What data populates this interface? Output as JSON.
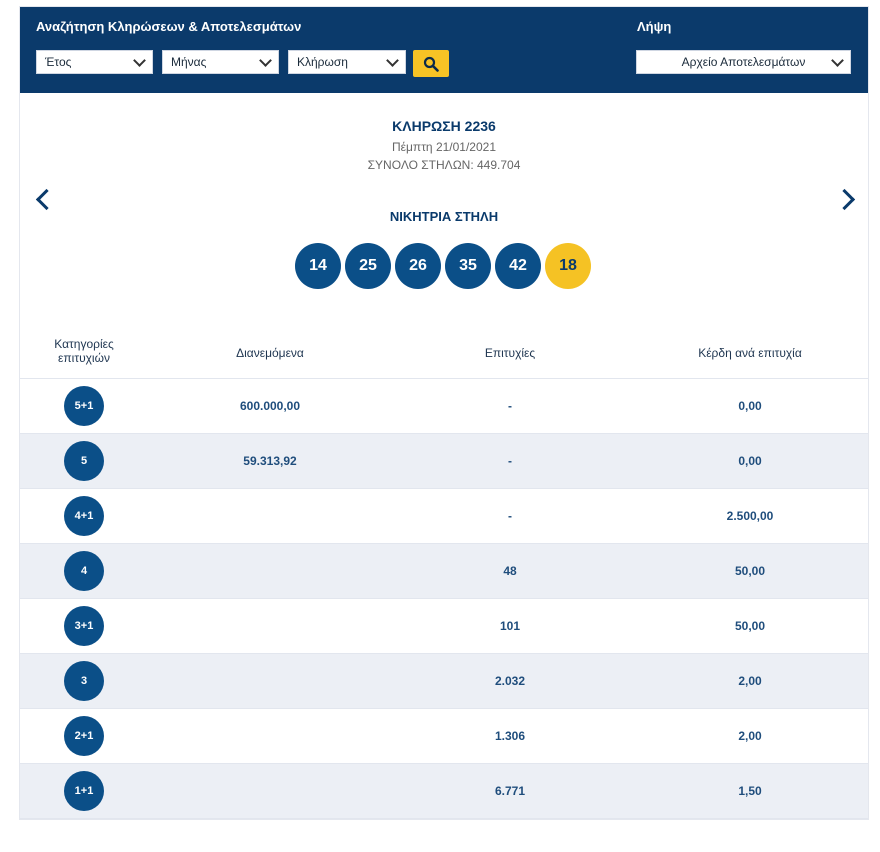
{
  "search": {
    "title": "Αναζήτηση Κληρώσεων & Αποτελεσμάτων",
    "year": "Έτος",
    "month": "Μήνας",
    "draw": "Κλήρωση"
  },
  "download": {
    "title": "Λήψη",
    "file": "Αρχείο Αποτελεσμάτων"
  },
  "draw": {
    "title": "ΚΛΗΡΩΣΗ 2236",
    "date": "Πέμπτη 21/01/2021",
    "total": "ΣΥΝΟΛΟ ΣΤΗΛΩΝ: 449.704"
  },
  "winning": {
    "title": "ΝΙΚΗΤΡΙΑ ΣΤΗΛΗ",
    "numbers": [
      "14",
      "25",
      "26",
      "35",
      "42"
    ],
    "joker": "18"
  },
  "table": {
    "headers": {
      "category": "Κατηγορίες επιτυχιών",
      "distributed": "Διανεμόμενα",
      "winners": "Επιτυχίες",
      "prize": "Κέρδη ανά επιτυχία"
    },
    "rows": [
      {
        "cat": "5+1",
        "dist": "600.000,00",
        "win": "-",
        "prize": "0,00"
      },
      {
        "cat": "5",
        "dist": "59.313,92",
        "win": "-",
        "prize": "0,00"
      },
      {
        "cat": "4+1",
        "dist": "",
        "win": "-",
        "prize": "2.500,00"
      },
      {
        "cat": "4",
        "dist": "",
        "win": "48",
        "prize": "50,00"
      },
      {
        "cat": "3+1",
        "dist": "",
        "win": "101",
        "prize": "50,00"
      },
      {
        "cat": "3",
        "dist": "",
        "win": "2.032",
        "prize": "2,00"
      },
      {
        "cat": "2+1",
        "dist": "",
        "win": "1.306",
        "prize": "2,00"
      },
      {
        "cat": "1+1",
        "dist": "",
        "win": "6.771",
        "prize": "1,50"
      }
    ]
  },
  "colors": {
    "navy": "#0b3a6b",
    "ball": "#0b4f88",
    "joker": "#f5c224",
    "row_alt": "#eceff5"
  }
}
